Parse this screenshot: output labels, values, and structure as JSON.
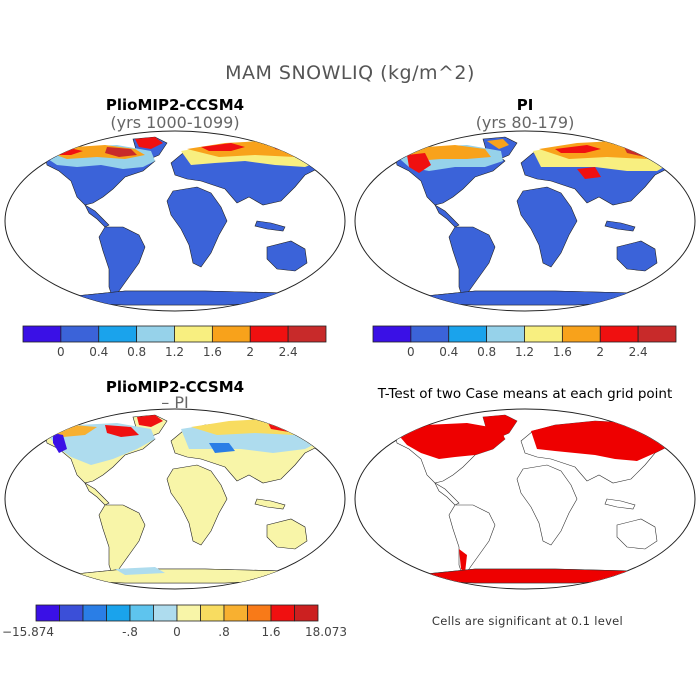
{
  "title": "MAM SNOWLIQ (kg/m^2)",
  "panels": {
    "top_left": {
      "title": "PlioMIP2-CCSM4",
      "subtitle": "(yrs 1000-1099)"
    },
    "top_right": {
      "title": "PI",
      "subtitle": "(yrs 80-179)"
    },
    "bottom_left": {
      "title": "PlioMIP2-CCSM4",
      "subtitle": "– PI"
    },
    "bottom_right": {
      "title": "T-Test of two Case means at each grid point"
    }
  },
  "colorbar_abs": {
    "colors": [
      "#3a10e6",
      "#3b63d9",
      "#1aa3ec",
      "#96d2ea",
      "#f8ef80",
      "#f8a21b",
      "#f01010",
      "#c82a2a"
    ],
    "labels": [
      "0",
      "0.4",
      "0.8",
      "1.2",
      "1.6",
      "2",
      "2.4"
    ]
  },
  "colorbar_diff": {
    "colors": [
      "#3a10e6",
      "#3b4fd8",
      "#2a7ee6",
      "#1aa3ec",
      "#5ec4ee",
      "#aedcee",
      "#f8f5a8",
      "#f8dc60",
      "#f8b030",
      "#f87a18",
      "#f01010",
      "#cc2020"
    ],
    "labels": [
      "−15.874",
      "-.8",
      "0",
      ".8",
      "1.6",
      "18.073"
    ]
  },
  "significance_note": "Cells are significant at 0.1 level",
  "colors": {
    "ocean": "#ffffff",
    "land_low": "#3b63d9",
    "land_diff_neutral": "#f8f5a8",
    "significant": "#ee0000",
    "coast": "#333333"
  }
}
